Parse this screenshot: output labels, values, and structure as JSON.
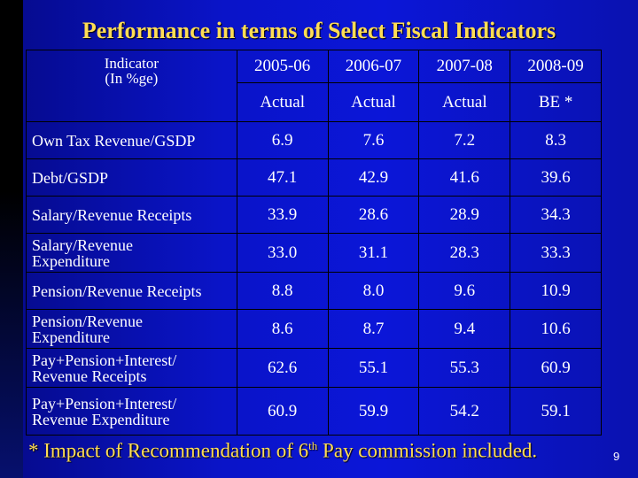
{
  "title": "Performance in terms of Select Fiscal Indicators",
  "header": {
    "indicator_line1": "Indicator",
    "indicator_line2": "(In %ge)",
    "years": [
      "2005-06",
      "2006-07",
      "2007-08",
      "2008-09"
    ],
    "status": [
      "Actual",
      "Actual",
      "Actual",
      "BE *"
    ]
  },
  "rows": [
    {
      "label": [
        "Own Tax Revenue/GSDP"
      ],
      "values": [
        "6.9",
        "7.6",
        "7.2",
        "8.3"
      ]
    },
    {
      "label": [
        "Debt/GSDP"
      ],
      "values": [
        "47.1",
        "42.9",
        "41.6",
        "39.6"
      ]
    },
    {
      "label": [
        "Salary/Revenue Receipts"
      ],
      "values": [
        "33.9",
        "28.6",
        "28.9",
        "34.3"
      ]
    },
    {
      "label": [
        "Salary/Revenue",
        "Expenditure"
      ],
      "values": [
        "33.0",
        "31.1",
        "28.3",
        "33.3"
      ]
    },
    {
      "label": [
        "Pension/Revenue Receipts"
      ],
      "values": [
        "8.8",
        "8.0",
        "9.6",
        "10.9"
      ]
    },
    {
      "label": [
        "Pension/Revenue",
        "Expenditure"
      ],
      "values": [
        "8.6",
        "8.7",
        "9.4",
        "10.6"
      ]
    },
    {
      "label": [
        "Pay+Pension+Interest/",
        "Revenue Receipts"
      ],
      "values": [
        "62.6",
        "55.1",
        "55.3",
        "60.9"
      ]
    },
    {
      "label": [
        "Pay+Pension+Interest/",
        "Revenue Expenditure"
      ],
      "values": [
        "60.9",
        "59.9",
        "54.2",
        "59.1"
      ]
    }
  ],
  "footnote": {
    "before": "* Impact of Recommendation of 6",
    "sup": "th",
    "after": " Pay commission included."
  },
  "page_number": "9",
  "colors": {
    "title": "#ffdd55",
    "background": "#0b16d8",
    "text": "#ffffff"
  }
}
